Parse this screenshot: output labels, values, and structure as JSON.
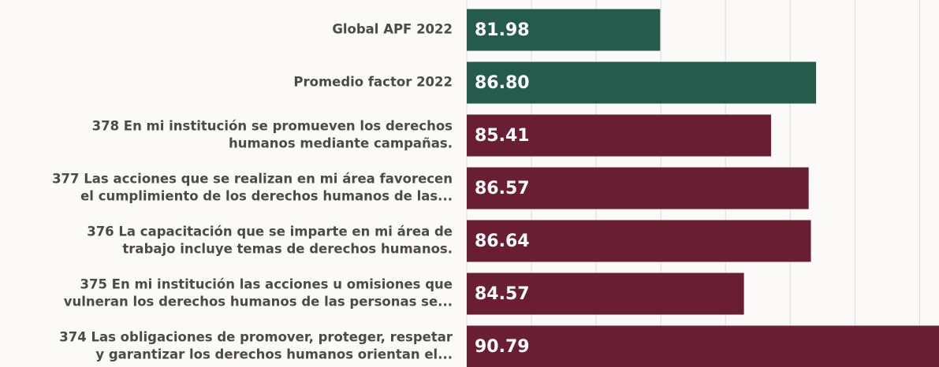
{
  "chart_data": {
    "type": "hbar",
    "categories": [
      [
        "Global APF 2022"
      ],
      [
        "Promedio factor 2022"
      ],
      [
        "378 En mi institución se promueven los derechos",
        "humanos mediante campañas."
      ],
      [
        "377 Las acciones que se realizan en mi área favorecen",
        "el cumplimiento de los derechos humanos de las..."
      ],
      [
        "376 La capacitación que se imparte en mi área de",
        "trabajo incluye temas de derechos humanos."
      ],
      [
        "375 En mi institución las acciones u omisiones que",
        "vulneran los derechos humanos de las personas se..."
      ],
      [
        "374 Las obligaciones de promover, proteger, respetar",
        "y garantizar los derechos humanos orientan el..."
      ]
    ],
    "values": [
      81.98,
      86.8,
      85.41,
      86.57,
      86.64,
      84.57,
      90.79
    ],
    "value_labels": [
      "81.98",
      "86.80",
      "85.41",
      "86.57",
      "86.64",
      "84.57",
      "90.79"
    ],
    "colors": [
      "#245b4b",
      "#245b4b",
      "#6a1e34",
      "#6a1e34",
      "#6a1e34",
      "#6a1e34",
      "#6a1e34"
    ],
    "xlim": [
      76,
      90.6
    ],
    "xticks": [
      76,
      78,
      80,
      82,
      84,
      86,
      88,
      90
    ],
    "grid": true
  }
}
